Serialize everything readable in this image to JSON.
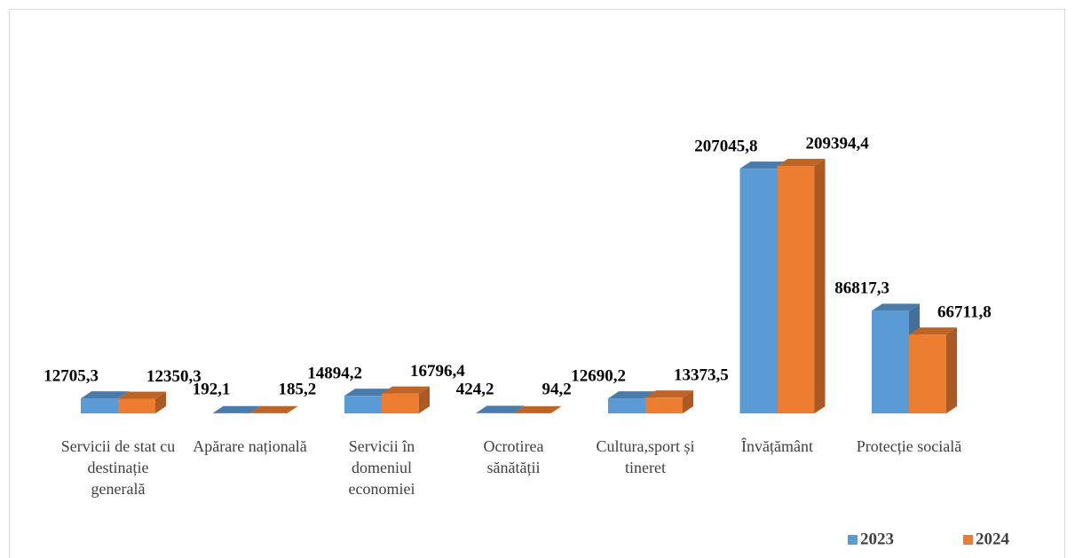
{
  "chart_data": {
    "type": "bar3d",
    "categories": [
      "Servicii de stat cu destinație generală",
      "Apărare națională",
      "Servicii în domeniul economiei",
      "Ocrotirea sănătății",
      "Cultura,sport și tineret",
      "Învățământ",
      "Protecție socială"
    ],
    "series": [
      {
        "name": "2023",
        "color": "#5b9bd5",
        "values": [
          12705.3,
          192.1,
          14894.2,
          424.2,
          12690.2,
          207045.8,
          86817.3
        ],
        "value_labels": [
          "12705,3",
          "192,1",
          "14894,2",
          "424,2",
          "12690,2",
          "207045,8",
          "86817,3"
        ]
      },
      {
        "name": "2024",
        "color": "#ed7d31",
        "values": [
          12350.3,
          185.2,
          16796.4,
          94.2,
          13373.5,
          209394.4,
          66711.8
        ],
        "value_labels": [
          "12350,3",
          "185,2",
          "16796,4",
          "94,2",
          "13373,5",
          "209394,4",
          "66711,8"
        ]
      }
    ],
    "legend": "bottom-right"
  }
}
